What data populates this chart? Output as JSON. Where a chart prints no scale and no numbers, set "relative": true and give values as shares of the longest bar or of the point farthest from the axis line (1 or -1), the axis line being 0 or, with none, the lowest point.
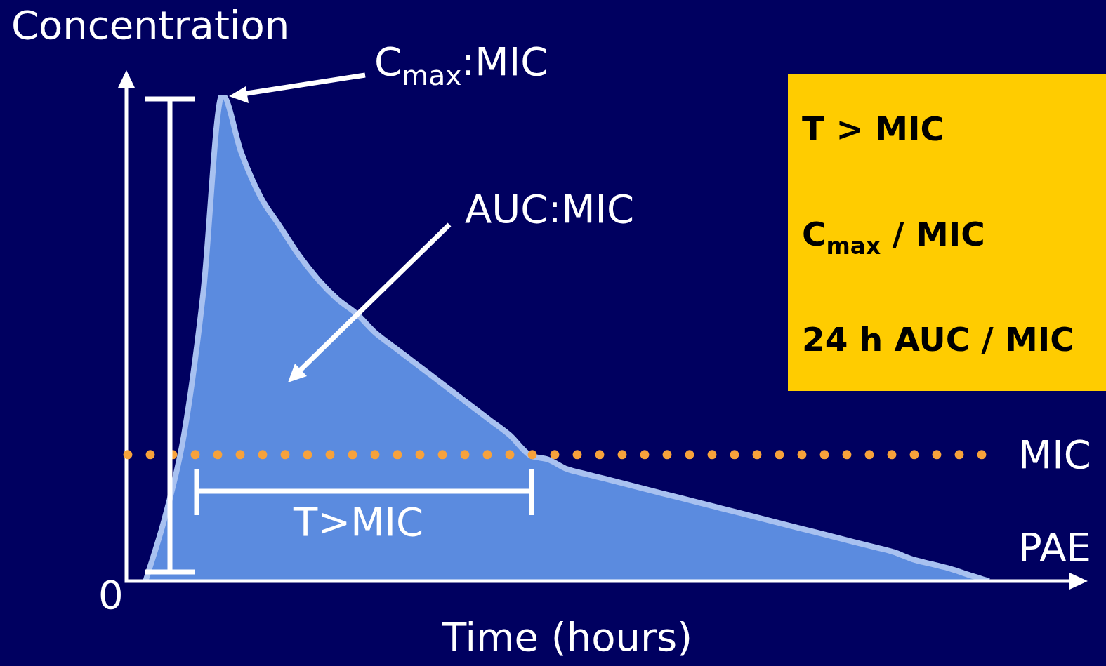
{
  "chart_data": {
    "type": "area",
    "relative": true,
    "ylabel": "Concentration",
    "xlabel": "Time (hours)",
    "categories": [
      null,
      null,
      null,
      null,
      null,
      null,
      null,
      null,
      null,
      null,
      null,
      null,
      null,
      null,
      null,
      null,
      null,
      null,
      null,
      null,
      null,
      null,
      null,
      null,
      null,
      null,
      null,
      null,
      null,
      null,
      null,
      null,
      null,
      null,
      null,
      null,
      null,
      null,
      null,
      null,
      null,
      null,
      null,
      null,
      null,
      null,
      null,
      null,
      null,
      null,
      null
    ],
    "series": [
      {
        "color": "#5b8bdf",
        "values": [
          null,
          0,
          0.13,
          0.3,
          0.59,
          1,
          0.88,
          0.79,
          0.73,
          0.67,
          0.62,
          0.58,
          0.55,
          0.51,
          0.48,
          0.45,
          0.42,
          0.39,
          0.36,
          0.33,
          0.3,
          0.26,
          0.25,
          0.23,
          0.22,
          0.21,
          0.2,
          0.19,
          0.18,
          0.17,
          0.16,
          0.15,
          0.14,
          0.13,
          0.12,
          0.11,
          0.1,
          0.09,
          0.08,
          0.07,
          0.06,
          0.045,
          0.035,
          0.025,
          0.012,
          0,
          null,
          null,
          null,
          null,
          null
        ]
      }
    ],
    "ref_lines": [
      {
        "axis": "y",
        "value": 0.26,
        "label": "MIC",
        "color": "#f7a23b",
        "line_style": "dotted"
      }
    ],
    "annotations": [
      "0",
      "PAE",
      "C$_{max}$:MIC",
      "AUC:MIC",
      "T>MIC",
      "T > MIC",
      "C$_{max}$ / MIC",
      "24 h AUC / MIC"
    ],
    "legend": false
  }
}
